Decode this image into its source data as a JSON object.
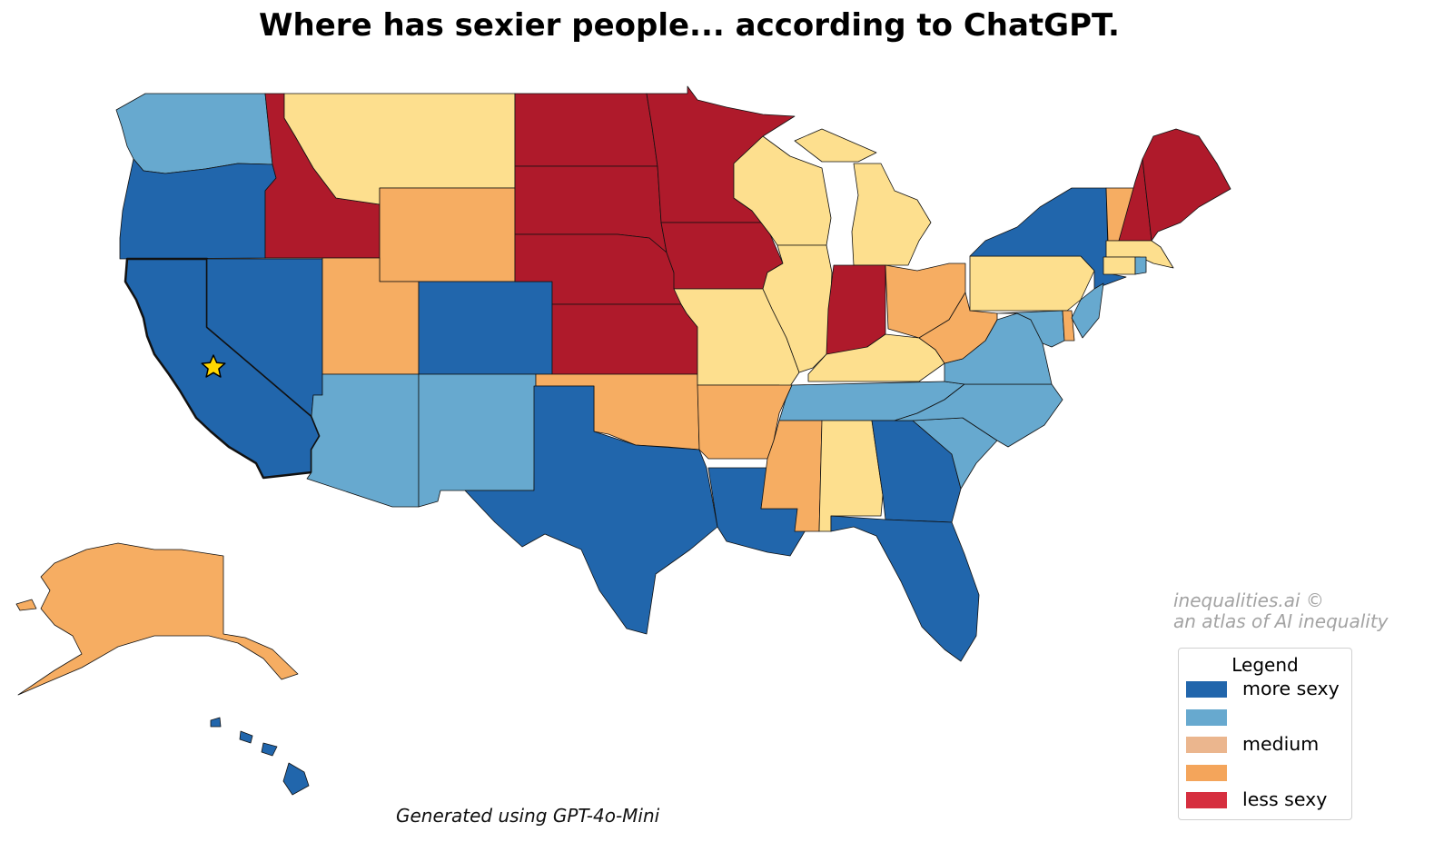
{
  "title": "Where has sexier people... according to ChatGPT.",
  "footer": "Generated using GPT-4o-Mini",
  "credit": {
    "line1": "inequalities.ai ©",
    "line2": "an atlas of AI inequality"
  },
  "legend": {
    "title": "Legend",
    "items": [
      {
        "label": "more sexy",
        "color": "#2166ac"
      },
      {
        "label": "",
        "color": "#67a9cf"
      },
      {
        "label": "medium",
        "color": "#ebb68e"
      },
      {
        "label": "",
        "color": "#f4a55b"
      },
      {
        "label": "less sexy",
        "color": "#d62f3f"
      }
    ]
  },
  "palette": {
    "more_sexy": "#2166ac",
    "sexy": "#67a9cf",
    "medium": "#fddf8e",
    "less": "#f6ad62",
    "least": "#af1a2b",
    "highlight_star": "#ffd700"
  },
  "highlighted_state": "CA",
  "states": {
    "WA": "sexy",
    "OR": "more_sexy",
    "CA": "more_sexy",
    "NV": "more_sexy",
    "ID": "least",
    "MT": "medium",
    "WY": "less",
    "UT": "less",
    "AZ": "sexy",
    "CO": "more_sexy",
    "NM": "sexy",
    "ND": "least",
    "SD": "least",
    "NE": "least",
    "KS": "least",
    "OK": "less",
    "TX": "more_sexy",
    "MN": "least",
    "IA": "least",
    "MO": "medium",
    "AR": "less",
    "LA": "more_sexy",
    "WI": "medium",
    "IL": "medium",
    "MI": "medium",
    "IN": "least",
    "OH": "less",
    "KY": "medium",
    "TN": "sexy",
    "MS": "less",
    "AL": "medium",
    "GA": "more_sexy",
    "FL": "more_sexy",
    "SC": "sexy",
    "NC": "sexy",
    "VA": "sexy",
    "WV": "less",
    "PA": "medium",
    "NY": "more_sexy",
    "VT": "less",
    "NH": "least",
    "ME": "least",
    "MA": "medium",
    "CT": "medium",
    "RI": "sexy",
    "NJ": "sexy",
    "DE": "less",
    "MD": "sexy",
    "AK": "less",
    "HI": "more_sexy"
  }
}
